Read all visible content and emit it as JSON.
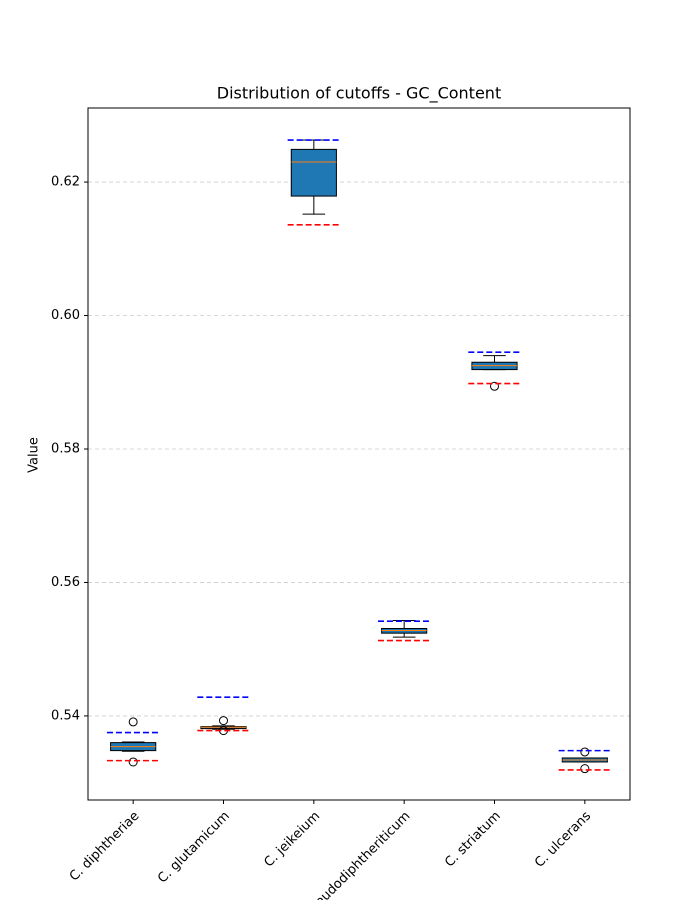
{
  "chart_data": {
    "type": "box",
    "title": "Distribution of cutoffs - GC_Content",
    "y_label": "Value",
    "categories": [
      "C. diphtheriae",
      "C. glutamicum",
      "C. jeikeium",
      "C. pseudodiphtheriticum",
      "C. striatum",
      "C. ulcerans"
    ],
    "box_color": "#1f77b4",
    "median_color": "#ff7f0e",
    "boxes": [
      {
        "min": 0.5347,
        "q1": 0.5348,
        "median": 0.5354,
        "q3": 0.536,
        "max": 0.5361,
        "fliers": [
          0.5391,
          0.5331
        ]
      },
      {
        "min": 0.538,
        "q1": 0.5381,
        "median": 0.5383,
        "q3": 0.5384,
        "max": 0.5385,
        "fliers": [
          0.5393,
          0.5378
        ]
      },
      {
        "min": 0.6152,
        "q1": 0.6179,
        "median": 0.623,
        "q3": 0.6249,
        "max": 0.6263,
        "fliers": []
      },
      {
        "min": 0.5518,
        "q1": 0.5524,
        "median": 0.5528,
        "q3": 0.5531,
        "max": 0.5543,
        "fliers": []
      },
      {
        "min": 0.5919,
        "q1": 0.5919,
        "median": 0.5925,
        "q3": 0.593,
        "max": 0.594,
        "fliers": [
          0.5894
        ]
      },
      {
        "min": 0.5331,
        "q1": 0.5331,
        "median": 0.5334,
        "q3": 0.5337,
        "max": 0.5337,
        "fliers": [
          0.5346,
          0.5321
        ]
      }
    ],
    "upper_lines": {
      "color": "#0000ff",
      "values": [
        0.5375,
        0.5428,
        0.6263,
        0.5542,
        0.5945,
        0.5348
      ]
    },
    "lower_lines": {
      "color": "#ff0000",
      "values": [
        0.5333,
        0.5378,
        0.6136,
        0.5513,
        0.5898,
        0.5319
      ]
    },
    "ylim": [
      0.5274,
      0.6311
    ],
    "yticks": [
      {
        "value": 0.54,
        "label": "0.54"
      },
      {
        "value": 0.56,
        "label": "0.56"
      },
      {
        "value": 0.58,
        "label": "0.58"
      },
      {
        "value": 0.6,
        "label": "0.60"
      },
      {
        "value": 0.62,
        "label": "0.62"
      }
    ],
    "grid": true
  }
}
